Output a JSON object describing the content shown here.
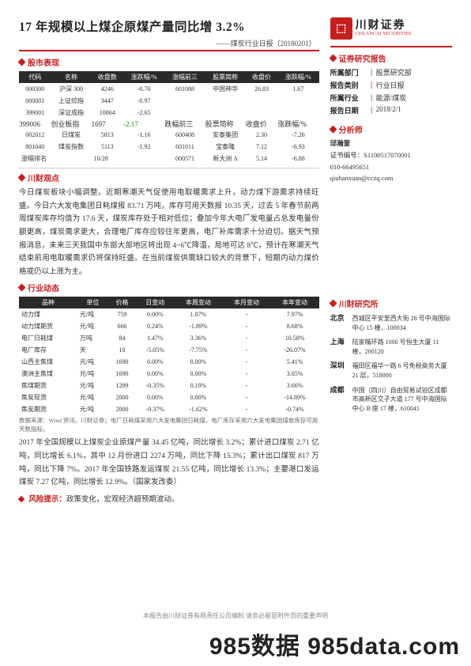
{
  "header": {
    "title": "17 年规模以上煤企原煤产量同比增 3.2%",
    "subtitle": "——煤炭行业日报（20180201）",
    "logo_cn": "川财证券",
    "logo_en": "CHUANCAI SECURITIES",
    "logo_mark": "⬘"
  },
  "colors": {
    "accent": "#c41e1e",
    "neg": "#1a8a1a",
    "pos": "#c41e1e",
    "head_bg": "#2a2a2a"
  },
  "sec_titles": {
    "stock": "股市表现",
    "view": "川财观点",
    "industry": "行业动态",
    "research": "证券研究报告",
    "analyst": "分析师",
    "institute": "川财研究所"
  },
  "stock_table": {
    "head_l": [
      "代码",
      "名称",
      "收盘数",
      "涨跌幅/%"
    ],
    "head_r1": [
      "涨幅前三",
      "股票简称",
      "收盘价",
      "涨跌幅/%"
    ],
    "head_r2": [
      "跌幅前三",
      "股票简称",
      "收盘价",
      "涨跌幅/%"
    ],
    "rows_l": [
      [
        "000300",
        "沪深 300",
        "4246",
        "-0.70"
      ],
      [
        "000001",
        "上证综指",
        "3447",
        "-0.97"
      ],
      [
        "399001",
        "深证成指",
        "10864",
        "-2.65"
      ],
      [
        "399006",
        "创业板指",
        "1697",
        "-2.17"
      ],
      [
        "002012",
        "日煤炭",
        "5813",
        "-1.16"
      ],
      [
        "801040",
        "煤炭指数",
        "5113",
        "-1.92"
      ]
    ],
    "rows_r1": [
      [
        "601088",
        "中国神华",
        "26.83",
        "1.67"
      ]
    ],
    "rows_r2": [
      [
        "600408",
        "安泰集团",
        "2.30",
        "-7.26"
      ],
      [
        "601011",
        "宝泰隆",
        "7.12",
        "-6.93"
      ],
      [
        "000571",
        "新大洲 A",
        "5.14",
        "-6.88"
      ]
    ],
    "rank_label": "涨幅排名",
    "rank_value": "10/28"
  },
  "view_text": "今日煤炭板块小幅调整。近期寒潮天气促使用电取暖需求上升，动力煤下游需求持续旺盛。今日六大发电集团日耗煤报 83.71 万吨，库存可用天数报 10.35 天，过去 5 年春节前两周煤炭库存均值为 17.6 天，煤炭库存处于相对低位；叠加今年大电厂发电量占总发电量份额更高，煤炭需求更大，合理电厂库存应较往年更高，电厂补库需求十分迫切。据天气预报消息，未来三天我国中东部大部地区将出现 4~6℃降温，局地可达 8℃，预计在寒潮天气结束前用电取暖需求仍将保持旺盛。在当前煤炭供需缺口较大的背景下，短期内动力煤价格或仍以上涨为主。",
  "industry_table": {
    "head": [
      "品种",
      "单位",
      "价格",
      "日变动",
      "本周变动",
      "本月变动",
      "本年变动"
    ],
    "rows": [
      [
        "动力煤",
        "元/吨",
        "759",
        "0.00%",
        "1.07%",
        "-",
        "7.97%"
      ],
      [
        "动力煤期货",
        "元/吨",
        "666",
        "0.24%",
        "-1.89%",
        "-",
        "8.68%"
      ],
      [
        "电厂日耗煤",
        "万吨",
        "84",
        "1.47%",
        "3.36%",
        "-",
        "10.58%"
      ],
      [
        "电厂库存",
        "天",
        "10",
        "-5.05%",
        "-7.75%",
        "-",
        "-26.07%"
      ],
      [
        "山西主焦煤",
        "元/吨",
        "1690",
        "0.00%",
        "0.00%",
        "-",
        "5.41%"
      ],
      [
        "澳洲主焦煤",
        "元/吨",
        "1690",
        "0.00%",
        "0.00%",
        "-",
        "3.05%"
      ],
      [
        "焦煤期货",
        "元/吨",
        "1289",
        "-0.35%",
        "0.19%",
        "-",
        "3.66%"
      ],
      [
        "焦炭现货",
        "元/吨",
        "2000",
        "0.00%",
        "0.00%",
        "-",
        "-14.89%"
      ],
      [
        "焦炭期货",
        "元/吨",
        "2000",
        "-0.37%",
        "-1.62%",
        "-",
        "-0.74%"
      ]
    ],
    "signs": [
      [
        "",
        "pos",
        "",
        "pos"
      ],
      [
        "pos",
        "neg",
        "",
        "pos"
      ],
      [
        "pos",
        "pos",
        "",
        "pos"
      ],
      [
        "neg",
        "neg",
        "",
        "neg"
      ],
      [
        "",
        "",
        "",
        "pos"
      ],
      [
        "",
        "",
        "",
        "pos"
      ],
      [
        "neg",
        "pos",
        "",
        "pos"
      ],
      [
        "",
        "",
        "",
        "neg"
      ],
      [
        "neg",
        "neg",
        "",
        "neg"
      ]
    ]
  },
  "wind_note": "数据来源：Wind 资讯，川财证券；电厂日耗煤采用六大发电集团日耗煤，电厂库存采用六大发电集团煤炭库存可用天数指标。",
  "industry_text": "2017 年全国规模以上煤炭企业原煤产量 34.45 亿吨，同比增长 3.2%；累计进口煤炭 2.71 亿吨，同比增长 6.1%，其中 12 月份进口 2274 万吨，同比下降 15.3%；累计出口煤炭 817 万吨，同比下降 7%。2017 年全国铁路发运煤炭 21.55 亿吨，同比增长 13.3%；主要港口发运煤炭 7.27 亿吨，同比增长 12.9%。（国家发改委）",
  "risk": {
    "label": "风险提示：",
    "text": "政策变化，宏观经济超预期波动。"
  },
  "side_info": {
    "rows": [
      {
        "label": "所属部门",
        "val": "股票研究部"
      },
      {
        "label": "报告类别",
        "val": "行业日报"
      },
      {
        "label": "所属行业",
        "val": "能源/煤炭"
      },
      {
        "label": "报告日期",
        "val": "2018/2/1"
      }
    ]
  },
  "analyst": {
    "name": "邱瀚萱",
    "cert_label": "证书编号：",
    "cert": "S1100517070001",
    "phone": "010-66495651",
    "email": "qiuhanxuan@cczq.com"
  },
  "institute": {
    "rows": [
      {
        "city": "北京",
        "addr": "西城区平安里西大街 28 号中海国际中心 15 楼，100034"
      },
      {
        "city": "上海",
        "addr": "陆家嘴环路 1000 号恒生大厦 11 楼，200120"
      },
      {
        "city": "深圳",
        "addr": "福田区福华一路 6 号免税商务大厦 21 层，518000"
      },
      {
        "city": "成都",
        "addr": "中国（四川）自由贸易试验区成都市高新区交子大道 177 号中海国际中心 B 座 17 楼，610041"
      }
    ]
  },
  "footer": "本报告由川财证券有限责任公司编制   请务必留意附件页的重要声明",
  "watermark": "985数据  985data.com"
}
